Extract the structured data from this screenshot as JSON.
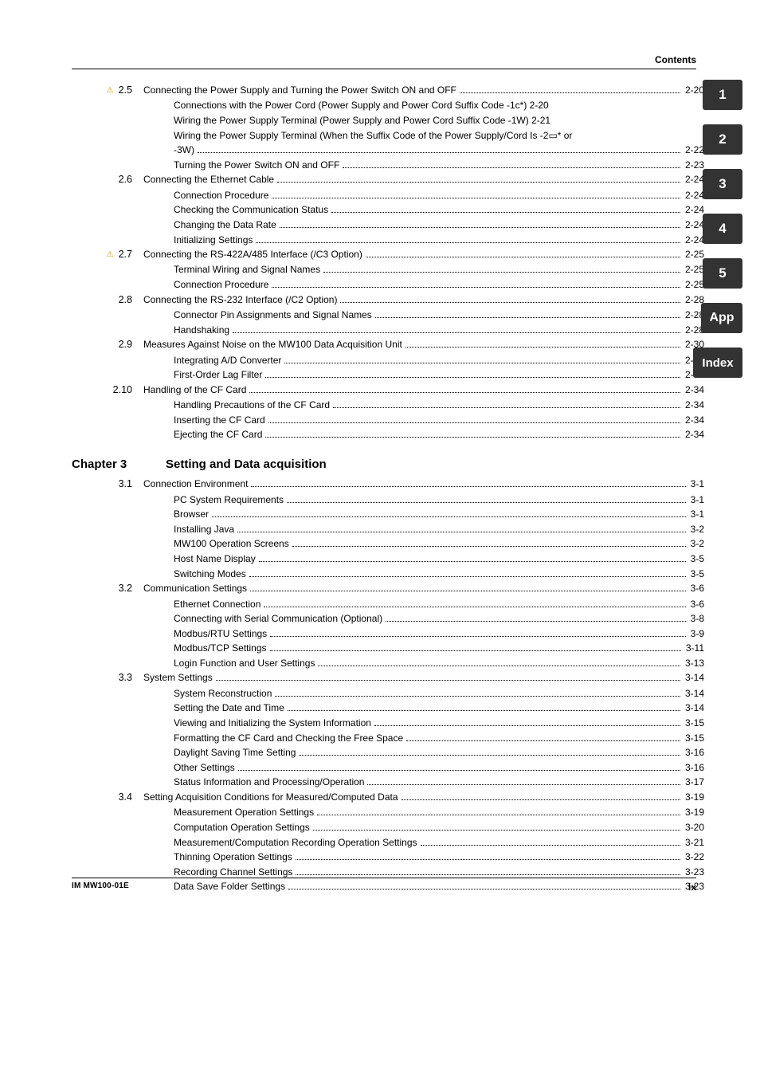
{
  "colors": {
    "text": "#000000",
    "background": "#ffffff",
    "tab_bg": "#333333",
    "tab_fg": "#ffffff",
    "warn_icon": "#c59a00",
    "rule": "#000000"
  },
  "typography": {
    "body_font": "Arial, Helvetica, sans-serif",
    "body_size_pt": 9,
    "chapter_size_pt": 11,
    "line_height": 1.55
  },
  "header": {
    "title": "Contents"
  },
  "side_tabs": [
    "1",
    "2",
    "3",
    "4",
    "5",
    "App",
    "Index"
  ],
  "toc_top": [
    {
      "num": "2.5",
      "warn": true,
      "title": "Connecting the Power Supply and Turning the Power Switch ON and OFF",
      "page": "2-20",
      "flow": [
        "Connections with the Power Cord (Power Supply and Power Cord Suffix Code -1c*) 2-20",
        "Wiring the Power Supply Terminal (Power Supply and Power Cord Suffix Code -1W) 2-21",
        "Wiring the Power Supply Terminal (When the Suffix Code of the Power Supply/Cord Is -2▭* or"
      ],
      "subs": [
        {
          "t": "-3W)",
          "p": "2-22"
        },
        {
          "t": "Turning the Power Switch ON and OFF",
          "p": "2-23"
        }
      ]
    },
    {
      "num": "2.6",
      "warn": false,
      "title": "Connecting the Ethernet Cable",
      "page": "2-24",
      "subs": [
        {
          "t": "Connection Procedure",
          "p": "2-24"
        },
        {
          "t": "Checking the Communication Status",
          "p": "2-24"
        },
        {
          "t": "Changing the Data Rate",
          "p": "2-24"
        },
        {
          "t": "Initializing Settings",
          "p": "2-24"
        }
      ]
    },
    {
      "num": "2.7",
      "warn": true,
      "title": "Connecting the RS-422A/485 Interface (/C3 Option)",
      "page": "2-25",
      "subs": [
        {
          "t": "Terminal Wiring and Signal Names",
          "p": "2-25"
        },
        {
          "t": "Connection Procedure",
          "p": "2-25"
        }
      ]
    },
    {
      "num": "2.8",
      "warn": false,
      "title": "Connecting the RS-232 Interface (/C2 Option)",
      "page": "2-28",
      "subs": [
        {
          "t": "Connector Pin Assignments and Signal Names",
          "p": "2-28"
        },
        {
          "t": "Handshaking",
          "p": "2-28"
        }
      ]
    },
    {
      "num": "2.9",
      "warn": false,
      "title": "Measures Against Noise on the MW100 Data Acquisition Unit",
      "page": "2-30",
      "subs": [
        {
          "t": "Integrating A/D Converter",
          "p": "2-30"
        },
        {
          "t": "First-Order Lag Filter",
          "p": "2-32"
        }
      ]
    },
    {
      "num": "2.10",
      "warn": false,
      "title": "Handling of the CF Card",
      "page": "2-34",
      "subs": [
        {
          "t": "Handling Precautions of the CF Card",
          "p": "2-34"
        },
        {
          "t": "Inserting the CF Card",
          "p": "2-34"
        },
        {
          "t": "Ejecting the CF Card",
          "p": "2-34"
        }
      ]
    }
  ],
  "chapter": {
    "label": "Chapter 3",
    "title": "Setting and Data acquisition"
  },
  "toc_ch3": [
    {
      "num": "3.1",
      "title": "Connection Environment",
      "page": "3-1",
      "subs": [
        {
          "t": "PC System Requirements",
          "p": "3-1"
        },
        {
          "t": "Browser",
          "p": "3-1"
        },
        {
          "t": "Installing Java",
          "p": "3-2"
        },
        {
          "t": "MW100 Operation Screens",
          "p": "3-2"
        },
        {
          "t": "Host Name Display",
          "p": "3-5"
        },
        {
          "t": "Switching Modes",
          "p": "3-5"
        }
      ]
    },
    {
      "num": "3.2",
      "title": "Communication Settings",
      "page": "3-6",
      "subs": [
        {
          "t": "Ethernet Connection",
          "p": "3-6"
        },
        {
          "t": "Connecting with Serial Communication (Optional)",
          "p": "3-8"
        },
        {
          "t": "Modbus/RTU Settings",
          "p": "3-9"
        },
        {
          "t": "Modbus/TCP Settings",
          "p": "3-11"
        },
        {
          "t": "Login Function and User Settings",
          "p": "3-13"
        }
      ]
    },
    {
      "num": "3.3",
      "title": "System Settings",
      "page": "3-14",
      "subs": [
        {
          "t": "System Reconstruction",
          "p": "3-14"
        },
        {
          "t": "Setting the Date and Time",
          "p": "3-14"
        },
        {
          "t": "Viewing and Initializing the System Information",
          "p": "3-15"
        },
        {
          "t": "Formatting the CF Card and Checking the Free Space",
          "p": "3-15"
        },
        {
          "t": "Daylight Saving Time Setting",
          "p": "3-16"
        },
        {
          "t": "Other Settings",
          "p": "3-16"
        },
        {
          "t": "Status Information and Processing/Operation",
          "p": "3-17"
        }
      ]
    },
    {
      "num": "3.4",
      "title": "Setting Acquisition Conditions for Measured/Computed Data",
      "page": "3-19",
      "subs": [
        {
          "t": "Measurement Operation Settings",
          "p": "3-19"
        },
        {
          "t": "Computation Operation Settings",
          "p": "3-20"
        },
        {
          "t": "Measurement/Computation Recording Operation Settings",
          "p": "3-21"
        },
        {
          "t": "Thinning Operation Settings",
          "p": "3-22"
        },
        {
          "t": "Recording Channel Settings",
          "p": "3-23"
        },
        {
          "t": "Data Save Folder Settings",
          "p": "3-23"
        }
      ]
    }
  ],
  "footer": {
    "left": "IM MW100-01E",
    "right": "ix"
  }
}
